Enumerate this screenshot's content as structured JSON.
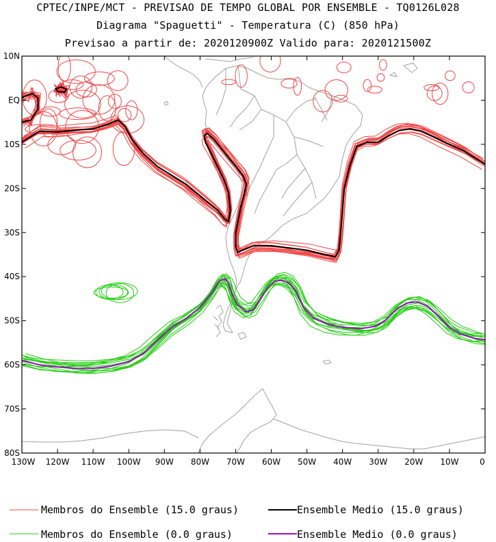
{
  "header": {
    "line1": "CPTEC/INPE/MCT - PREVISAO DE TEMPO GLOBAL POR ENSEMBLE - TQ0126L028",
    "line2": "Diagrama \"Spaguetti\" - Temperatura (C) (850 hPa)",
    "line3": "Previsao a partir de: 2020120900Z  Valido para: 2020121500Z"
  },
  "axes": {
    "lon_labels": [
      "130W",
      "120W",
      "110W",
      "100W",
      "90W",
      "80W",
      "70W",
      "60W",
      "50W",
      "40W",
      "30W",
      "20W",
      "10W",
      "0"
    ],
    "lon_values": [
      -130,
      -120,
      -110,
      -100,
      -90,
      -80,
      -70,
      -60,
      -50,
      -40,
      -30,
      -20,
      -10,
      0
    ],
    "lat_labels": [
      "10N",
      "EQ",
      "10S",
      "20S",
      "30S",
      "40S",
      "50S",
      "60S",
      "70S",
      "80S"
    ],
    "lat_values": [
      10,
      0,
      -10,
      -20,
      -30,
      -40,
      -50,
      -60,
      -70,
      -80
    ],
    "lon_range": [
      -130,
      0
    ],
    "lat_range": [
      -80,
      10
    ]
  },
  "legend": {
    "members_15": "Membros do Ensemble (15.0 graus)",
    "mean_15": "Ensemble Medio (15.0 graus)",
    "members_0": "Membros do Ensemble (0.0 graus)",
    "mean_0": "Ensemble Medio (0.0 graus)"
  },
  "colors": {
    "members_15": "#ee4444",
    "mean_15": "#000000",
    "members_0": "#22cc11",
    "mean_0": "#9911bb",
    "coastline": "#a0a0a0"
  },
  "chart_data": {
    "type": "spaghetti-map",
    "contours": [
      {
        "name": "Ensemble Medio (15.0 graus)",
        "segments": [
          [
            [
              -130,
              -9.5
            ],
            [
              -127,
              -8
            ],
            [
              -125,
              -7
            ],
            [
              -120,
              -7.2
            ],
            [
              -115,
              -6.8
            ],
            [
              -110,
              -6.5
            ],
            [
              -106,
              -5.5
            ],
            [
              -103,
              -4.5
            ],
            [
              -101,
              -6
            ],
            [
              -99,
              -9
            ],
            [
              -96,
              -12
            ],
            [
              -92,
              -15
            ],
            [
              -88,
              -17
            ],
            [
              -84,
              -19
            ],
            [
              -81,
              -21
            ],
            [
              -78,
              -23
            ],
            [
              -75,
              -25
            ],
            [
              -73,
              -27
            ],
            [
              -72,
              -27.5
            ],
            [
              -71.5,
              -25
            ],
            [
              -72,
              -21
            ],
            [
              -73,
              -18.5
            ],
            [
              -74.5,
              -16
            ],
            [
              -76,
              -13.5
            ],
            [
              -77.5,
              -11
            ],
            [
              -78.5,
              -9.5
            ],
            [
              -78.8,
              -8
            ],
            [
              -78,
              -7.5
            ],
            [
              -76,
              -9
            ],
            [
              -74,
              -11
            ],
            [
              -72,
              -13
            ],
            [
              -70,
              -15
            ],
            [
              -68,
              -17
            ],
            [
              -67,
              -19
            ],
            [
              -67.5,
              -21
            ],
            [
              -68.5,
              -24
            ],
            [
              -69.5,
              -28
            ],
            [
              -70,
              -30
            ],
            [
              -70,
              -33
            ],
            [
              -69.5,
              -34.5
            ],
            [
              -68,
              -34
            ],
            [
              -65,
              -33
            ],
            [
              -60,
              -33
            ],
            [
              -55,
              -33.5
            ],
            [
              -50,
              -34
            ],
            [
              -45,
              -35
            ],
            [
              -42,
              -35.5
            ],
            [
              -41,
              -34
            ],
            [
              -40.5,
              -30
            ],
            [
              -40,
              -25
            ],
            [
              -39.5,
              -20
            ],
            [
              -38,
              -15
            ],
            [
              -36,
              -10.5
            ],
            [
              -33,
              -9.5
            ],
            [
              -30,
              -9.5
            ],
            [
              -27,
              -8
            ],
            [
              -24,
              -6.8
            ],
            [
              -21,
              -6.5
            ],
            [
              -18,
              -7
            ],
            [
              -14,
              -8.5
            ],
            [
              -10,
              -10
            ],
            [
              -6,
              -11.5
            ],
            [
              -3,
              -13
            ],
            [
              0,
              -14.5
            ]
          ],
          [
            [
              -130,
              -5
            ],
            [
              -127.5,
              -4.5
            ],
            [
              -125.5,
              -2
            ],
            [
              -125.5,
              0.5
            ],
            [
              -127,
              1.5
            ],
            [
              -129,
              1
            ],
            [
              -130,
              0.5
            ]
          ],
          [
            [
              -120,
              2
            ],
            [
              -118,
              1.8
            ],
            [
              -117.5,
              2.5
            ],
            [
              -119,
              3
            ],
            [
              -120.5,
              2.6
            ],
            [
              -120,
              2
            ]
          ]
        ]
      },
      {
        "name": "Ensemble Medio (0.0 graus)",
        "segments": [
          [
            [
              -130,
              -59
            ],
            [
              -125,
              -60
            ],
            [
              -120,
              -60.5
            ],
            [
              -115,
              -60.8
            ],
            [
              -110,
              -60.8
            ],
            [
              -105,
              -60.3
            ],
            [
              -100,
              -59.3
            ],
            [
              -96,
              -57.5
            ],
            [
              -92,
              -54.5
            ],
            [
              -88,
              -51.5
            ],
            [
              -84,
              -49.5
            ],
            [
              -80,
              -47
            ],
            [
              -77,
              -44
            ],
            [
              -74.5,
              -41
            ],
            [
              -73,
              -40.5
            ],
            [
              -72,
              -41.5
            ],
            [
              -71,
              -44
            ],
            [
              -69.5,
              -46.5
            ],
            [
              -67,
              -48
            ],
            [
              -65,
              -47.5
            ],
            [
              -63,
              -45
            ],
            [
              -61,
              -42.5
            ],
            [
              -59,
              -41
            ],
            [
              -57,
              -40.8
            ],
            [
              -55,
              -41.5
            ],
            [
              -53,
              -43.5
            ],
            [
              -51,
              -47
            ],
            [
              -48,
              -49.5
            ],
            [
              -44,
              -50.8
            ],
            [
              -40,
              -51.5
            ],
            [
              -35,
              -51.8
            ],
            [
              -31,
              -51.3
            ],
            [
              -28,
              -50
            ],
            [
              -25,
              -47.5
            ],
            [
              -22,
              -46
            ],
            [
              -19,
              -45.7
            ],
            [
              -16,
              -46.8
            ],
            [
              -13,
              -49
            ],
            [
              -10,
              -51.5
            ],
            [
              -7,
              -53
            ],
            [
              -3,
              -54
            ],
            [
              0,
              -54.3
            ]
          ]
        ]
      }
    ]
  }
}
